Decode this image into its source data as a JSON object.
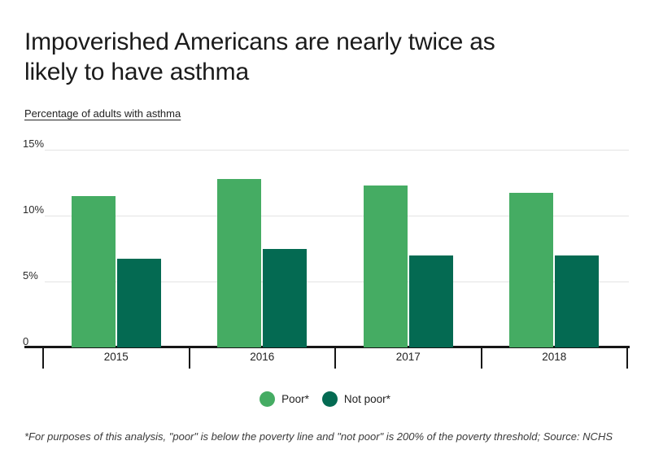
{
  "header": {
    "title_lines": [
      "Impoverished Americans are nearly twice as",
      "likely to have asthma"
    ],
    "subtitle": "Percentage of adults with asthma"
  },
  "chart_data": {
    "type": "bar",
    "title": "Impoverished Americans are nearly twice as likely to have asthma",
    "ylabel": "Percentage of adults with asthma",
    "categories": [
      "2015",
      "2016",
      "2017",
      "2018"
    ],
    "series": [
      {
        "name": "Poor*",
        "color": "#45ac63",
        "values": [
          11.5,
          12.8,
          12.3,
          11.7
        ]
      },
      {
        "name": "Not poor*",
        "color": "#046a52",
        "values": [
          6.7,
          7.5,
          7.0,
          7.0
        ]
      }
    ],
    "ylim": [
      0,
      15
    ],
    "y_ticks": [
      {
        "value": 15,
        "label": "15%"
      },
      {
        "value": 10,
        "label": "10%"
      },
      {
        "value": 5,
        "label": "5%"
      },
      {
        "value": 0,
        "label": "0"
      }
    ],
    "grid": true,
    "legend_position": "bottom"
  },
  "legend": {
    "items": [
      {
        "label": "Poor*",
        "color": "#45ac63"
      },
      {
        "label": "Not poor*",
        "color": "#046a52"
      }
    ]
  },
  "footnote": "*For purposes of this analysis, \"poor\" is below the poverty line and \"not poor\" is 200% of the poverty threshold;  Source: NCHS",
  "colors": {
    "poor": "#45ac63",
    "not_poor": "#046a52",
    "gridline": "#e4e4e4",
    "axis": "#161616",
    "title_text": "#1b1b1b",
    "footnote_text": "#3a3a3a"
  }
}
